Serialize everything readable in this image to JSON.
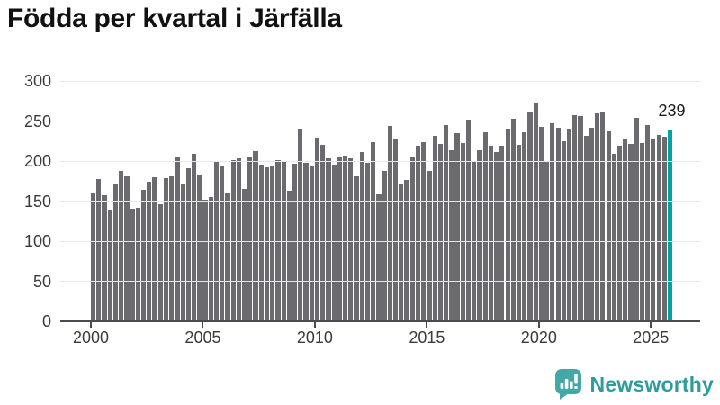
{
  "title": "Födda per kvartal i Järfälla",
  "chart_data": {
    "type": "bar",
    "title": "Födda per kvartal i Järfälla",
    "xlabel": "",
    "ylabel": "",
    "ylim": [
      0,
      300
    ],
    "yticks": [
      0,
      50,
      100,
      150,
      200,
      250,
      300
    ],
    "xtick_labels": [
      "2000",
      "2005",
      "2010",
      "2015",
      "2020",
      "2025"
    ],
    "grid": "horizontal",
    "legend": "none",
    "bar_color": "#6b6b6f",
    "highlight_color": "#00a3a4",
    "highlight_index": 103,
    "annotation": {
      "text": "239",
      "target": "2025 Q4"
    },
    "categories": [
      "2000 Q1",
      "2000 Q2",
      "2000 Q3",
      "2000 Q4",
      "2001 Q1",
      "2001 Q2",
      "2001 Q3",
      "2001 Q4",
      "2002 Q1",
      "2002 Q2",
      "2002 Q3",
      "2002 Q4",
      "2003 Q1",
      "2003 Q2",
      "2003 Q3",
      "2003 Q4",
      "2004 Q1",
      "2004 Q2",
      "2004 Q3",
      "2004 Q4",
      "2005 Q1",
      "2005 Q2",
      "2005 Q3",
      "2005 Q4",
      "2006 Q1",
      "2006 Q2",
      "2006 Q3",
      "2006 Q4",
      "2007 Q1",
      "2007 Q2",
      "2007 Q3",
      "2007 Q4",
      "2008 Q1",
      "2008 Q2",
      "2008 Q3",
      "2008 Q4",
      "2009 Q1",
      "2009 Q2",
      "2009 Q3",
      "2009 Q4",
      "2010 Q1",
      "2010 Q2",
      "2010 Q3",
      "2010 Q4",
      "2011 Q1",
      "2011 Q2",
      "2011 Q3",
      "2011 Q4",
      "2012 Q1",
      "2012 Q2",
      "2012 Q3",
      "2012 Q4",
      "2013 Q1",
      "2013 Q2",
      "2013 Q3",
      "2013 Q4",
      "2014 Q1",
      "2014 Q2",
      "2014 Q3",
      "2014 Q4",
      "2015 Q1",
      "2015 Q2",
      "2015 Q3",
      "2015 Q4",
      "2016 Q1",
      "2016 Q2",
      "2016 Q3",
      "2016 Q4",
      "2017 Q1",
      "2017 Q2",
      "2017 Q3",
      "2017 Q4",
      "2018 Q1",
      "2018 Q2",
      "2018 Q3",
      "2018 Q4",
      "2019 Q1",
      "2019 Q2",
      "2019 Q3",
      "2019 Q4",
      "2020 Q1",
      "2020 Q2",
      "2020 Q3",
      "2020 Q4",
      "2021 Q1",
      "2021 Q2",
      "2021 Q3",
      "2021 Q4",
      "2022 Q1",
      "2022 Q2",
      "2022 Q3",
      "2022 Q4",
      "2023 Q1",
      "2023 Q2",
      "2023 Q3",
      "2023 Q4",
      "2024 Q1",
      "2024 Q2",
      "2024 Q3",
      "2024 Q4",
      "2025 Q1",
      "2025 Q2",
      "2025 Q3",
      "2025 Q4"
    ],
    "values": [
      160,
      178,
      157,
      139,
      172,
      188,
      181,
      140,
      142,
      164,
      174,
      180,
      146,
      179,
      181,
      206,
      172,
      191,
      209,
      182,
      152,
      155,
      200,
      194,
      161,
      201,
      203,
      165,
      204,
      212,
      195,
      192,
      194,
      201,
      199,
      163,
      197,
      240,
      198,
      194,
      229,
      220,
      203,
      195,
      205,
      207,
      203,
      181,
      211,
      198,
      224,
      159,
      188,
      244,
      228,
      172,
      176,
      204,
      219,
      224,
      188,
      232,
      221,
      245,
      214,
      235,
      222,
      252,
      200,
      213,
      236,
      219,
      211,
      219,
      240,
      253,
      220,
      236,
      262,
      273,
      243,
      200,
      247,
      242,
      225,
      241,
      257,
      256,
      231,
      242,
      260,
      261,
      237,
      209,
      219,
      227,
      221,
      254,
      222,
      245,
      228,
      233,
      230,
      239
    ]
  },
  "branding": {
    "logo_text": "Newsworthy",
    "icon": "newsworthy-bubble-barchart-icon",
    "icon_color": "#46a7a8",
    "text_color": "#2e9b9d"
  }
}
